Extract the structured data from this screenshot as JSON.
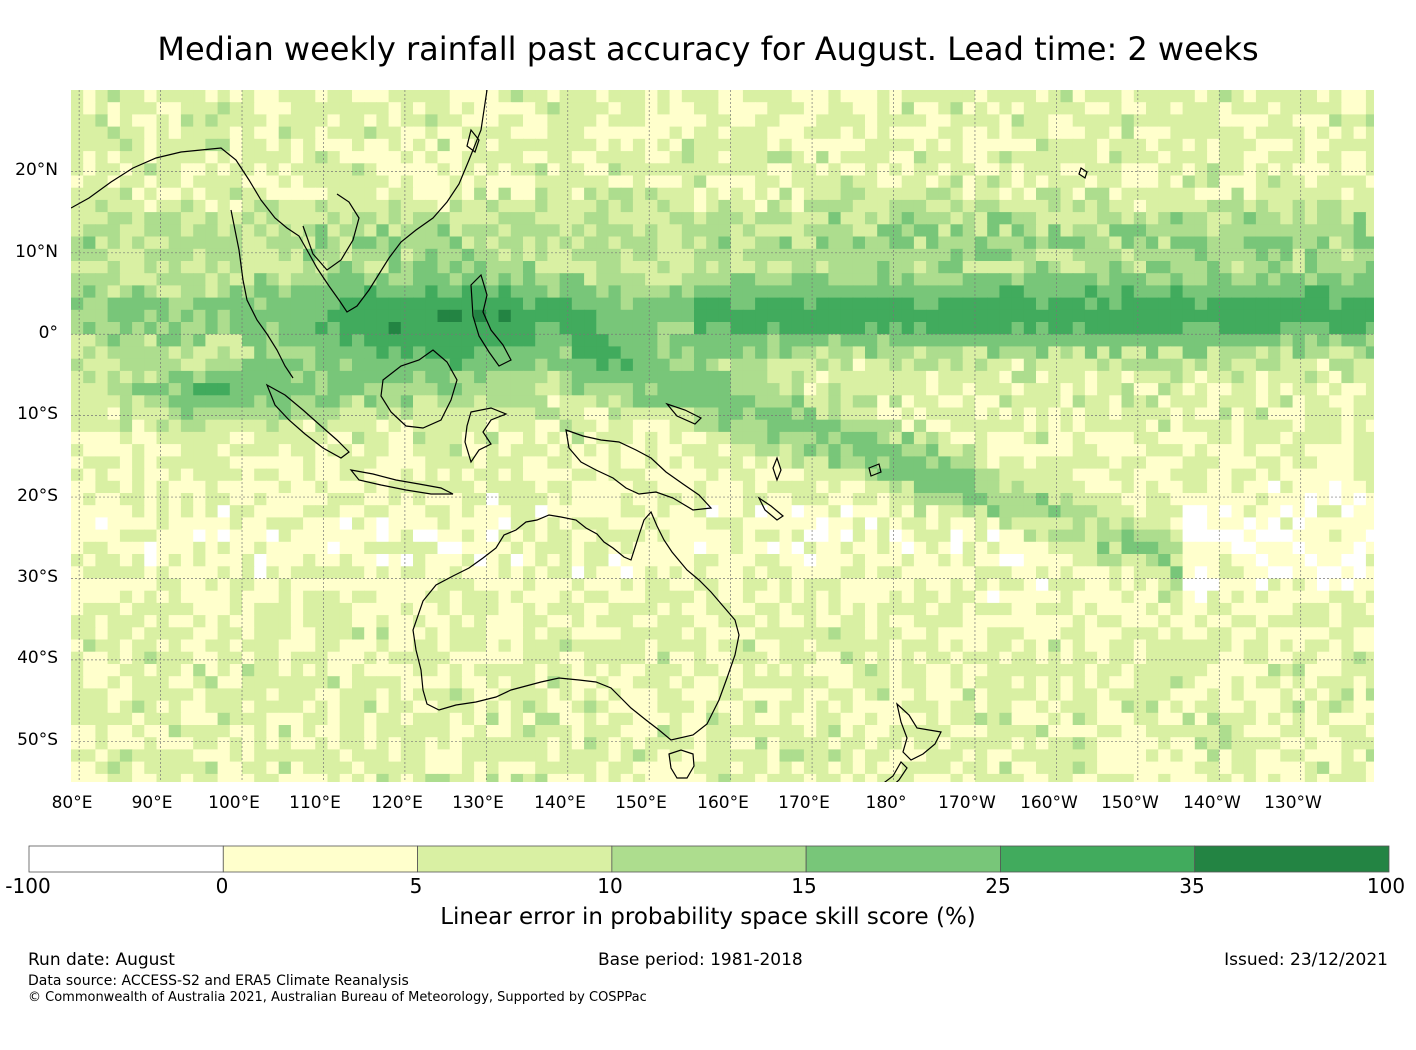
{
  "title": "Median weekly rainfall past accuracy for August. Lead time: 2 weeks",
  "map": {
    "lat_labels": [
      "20°N",
      "10°N",
      "0°",
      "10°S",
      "20°S",
      "30°S",
      "40°S",
      "50°S"
    ],
    "lat_values": [
      20,
      10,
      0,
      -10,
      -20,
      -30,
      -40,
      -50
    ],
    "lon_labels": [
      "80°E",
      "90°E",
      "100°E",
      "110°E",
      "120°E",
      "130°E",
      "140°E",
      "150°E",
      "160°E",
      "170°E",
      "180°",
      "170°W",
      "160°W",
      "150°W",
      "140°W",
      "130°W"
    ],
    "lon_values": [
      80,
      90,
      100,
      110,
      120,
      130,
      140,
      150,
      160,
      170,
      180,
      190,
      200,
      210,
      220,
      230
    ],
    "lon_range": [
      79,
      239
    ],
    "lat_range": [
      -55,
      30
    ],
    "gridlines": true
  },
  "colorbar": {
    "bounds": [
      "-100",
      "0",
      "5",
      "10",
      "15",
      "25",
      "35",
      "100"
    ],
    "colors": [
      "#ffffff",
      "#ffffcc",
      "#d9f0a3",
      "#addd8e",
      "#78c679",
      "#41ab5d",
      "#238443"
    ],
    "label": "Linear error in probability space skill score (%)"
  },
  "footer": {
    "run_date": "Run date: August",
    "base_period": "Base period: 1981-2018",
    "issued": "Issued: 23/12/2021",
    "data_source": "Data source: ACCESS-S2 and ERA5 Climate Reanalysis",
    "copyright": "© Commonwealth of Australia 2021, Australian Bureau of Meteorology, Supported by COSPPac"
  }
}
